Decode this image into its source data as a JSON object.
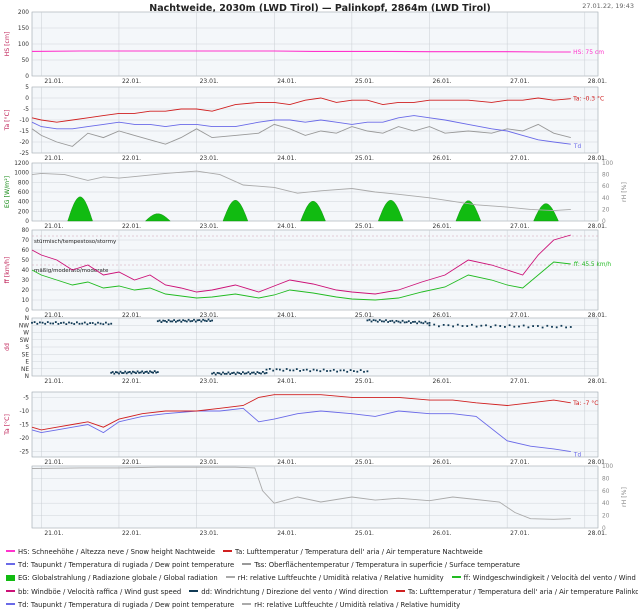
{
  "header": {
    "title": "Nachtweide, 2030m (LWD Tirol) — Palinkopf, 2864m (LWD Tirol)",
    "timestamp": "27.01.22, 19:43"
  },
  "colors": {
    "snow": "#ff33cc",
    "air": "#d02020",
    "dew": "#6a6ae8",
    "surface": "#999999",
    "radiation": "#11bb11",
    "humidity": "#aaaaaa",
    "wind": "#22bb22",
    "gust": "#cc1177",
    "direction": "#113a55",
    "panel_bg": "#f4f7fa",
    "grid": "#c8cdd2"
  },
  "chart_data": [
    {
      "type": "line",
      "id": "snow",
      "ylabel": "HS [cm]",
      "ylim": [
        0,
        200
      ],
      "yticks": [
        0,
        50,
        100,
        150,
        200
      ],
      "x_ticks": [
        "21.01.",
        "22.01.",
        "23.01.",
        "24.01.",
        "25.01.",
        "26.01.",
        "27.01.",
        "28.01."
      ],
      "end_label": "HS: 75 cm",
      "series": [
        {
          "name": "HS: Schneehöhe / Altezza neve / Snow height Nachtweide",
          "color": "#ff33cc",
          "x": [
            20.88,
            21.5,
            22.0,
            22.5,
            23.0,
            23.5,
            24.0,
            24.5,
            25.0,
            25.5,
            26.0,
            26.5,
            27.0,
            27.5,
            27.82
          ],
          "y": [
            77,
            78,
            78,
            78,
            78,
            78,
            78,
            77,
            77,
            77,
            76,
            76,
            76,
            75,
            75
          ]
        }
      ]
    },
    {
      "type": "line",
      "id": "nachtweide-temp",
      "ylabel": "Ta [°C]",
      "ylim": [
        -25,
        5
      ],
      "yticks": [
        5,
        0,
        -5,
        -10,
        -15,
        -20,
        -25
      ],
      "x_ticks": [
        "21.01.",
        "22.01.",
        "23.01.",
        "24.01.",
        "25.01.",
        "26.01.",
        "27.01.",
        "28.01."
      ],
      "end_labels": [
        "Ta: -0.3 °C",
        "Td"
      ],
      "series": [
        {
          "name": "Ta: Lufttemperatur / Temperatura dell' aria / Air temperature Nachtweide",
          "color": "#d02020",
          "x": [
            20.88,
            21.0,
            21.2,
            21.4,
            21.6,
            21.8,
            22.0,
            22.2,
            22.4,
            22.6,
            22.8,
            23.0,
            23.2,
            23.5,
            23.8,
            24.0,
            24.2,
            24.4,
            24.6,
            24.8,
            25.0,
            25.2,
            25.4,
            25.6,
            25.8,
            26.0,
            26.2,
            26.5,
            26.8,
            27.0,
            27.2,
            27.4,
            27.6,
            27.82
          ],
          "y": [
            -9,
            -10,
            -11,
            -10,
            -9,
            -8,
            -7,
            -7,
            -6,
            -6,
            -5,
            -5,
            -6,
            -3,
            -2,
            -2,
            -3,
            -1,
            0,
            -2,
            -1,
            -1,
            -3,
            -2,
            -2,
            -1,
            -1,
            -1,
            -2,
            -1,
            -1,
            0,
            -1,
            -0.3
          ]
        },
        {
          "name": "Td: Taupunkt / Temperatura di rugiada / Dew point temperature",
          "color": "#6a6ae8",
          "x": [
            20.88,
            21.0,
            21.2,
            21.4,
            21.6,
            21.8,
            22.0,
            22.2,
            22.4,
            22.6,
            22.8,
            23.0,
            23.2,
            23.5,
            23.8,
            24.0,
            24.2,
            24.4,
            24.6,
            24.8,
            25.0,
            25.2,
            25.4,
            25.6,
            25.8,
            26.0,
            26.2,
            26.5,
            26.8,
            27.0,
            27.2,
            27.4,
            27.6,
            27.82
          ],
          "y": [
            -11,
            -13,
            -14,
            -14,
            -13,
            -12,
            -11,
            -12,
            -12,
            -13,
            -12,
            -12,
            -13,
            -13,
            -11,
            -10,
            -10,
            -11,
            -10,
            -11,
            -12,
            -11,
            -11,
            -9,
            -8,
            -9,
            -10,
            -12,
            -14,
            -15,
            -17,
            -19,
            -20,
            -21
          ]
        },
        {
          "name": "Tss: Oberflächentemperatur / Temperatura in superficie / Surface temperature",
          "color": "#999999",
          "x": [
            20.88,
            21.0,
            21.2,
            21.4,
            21.6,
            21.8,
            22.0,
            22.2,
            22.4,
            22.6,
            22.8,
            23.0,
            23.2,
            23.5,
            23.8,
            24.0,
            24.2,
            24.4,
            24.6,
            24.8,
            25.0,
            25.2,
            25.4,
            25.6,
            25.8,
            26.0,
            26.2,
            26.5,
            26.8,
            27.0,
            27.2,
            27.4,
            27.6,
            27.82
          ],
          "y": [
            -14,
            -17,
            -20,
            -22,
            -16,
            -18,
            -15,
            -17,
            -19,
            -21,
            -18,
            -14,
            -18,
            -17,
            -16,
            -12,
            -14,
            -17,
            -15,
            -16,
            -13,
            -15,
            -16,
            -13,
            -15,
            -13,
            -16,
            -15,
            -16,
            -14,
            -15,
            -12,
            -16,
            -18
          ]
        }
      ]
    },
    {
      "type": "area",
      "id": "radiation",
      "ylabel": "EG [W/m²]",
      "ylabel_right": "rH [%]",
      "ylim": [
        0,
        1200
      ],
      "yticks": [
        0,
        200,
        400,
        600,
        800,
        1000,
        1200
      ],
      "ylim_right": [
        0,
        100
      ],
      "yticks_right": [
        0,
        20,
        40,
        60,
        80,
        100
      ],
      "x_ticks": [
        "21.01.",
        "22.01.",
        "23.01.",
        "24.01.",
        "25.01.",
        "26.01.",
        "27.01.",
        "28.01."
      ],
      "series": [
        {
          "name": "EG: Globalstrahlung / Radiazione globale / Global radiation",
          "color": "#11bb11",
          "days": [
            21.5,
            22.5,
            23.5,
            24.5,
            25.5,
            26.5,
            27.5
          ],
          "peaks": [
            500,
            150,
            430,
            410,
            430,
            420,
            360
          ]
        },
        {
          "name": "rH: relative Luftfeuchte / Umidità relativa / Relative humidity",
          "color": "#aaaaaa",
          "axis": "right",
          "x": [
            20.88,
            21.0,
            21.3,
            21.6,
            21.8,
            22.0,
            22.3,
            22.6,
            23.0,
            23.3,
            23.6,
            24.0,
            24.3,
            24.6,
            25.0,
            25.3,
            25.6,
            26.0,
            26.3,
            26.6,
            27.0,
            27.3,
            27.6,
            27.82
          ],
          "y": [
            80,
            82,
            80,
            70,
            76,
            74,
            78,
            82,
            86,
            80,
            62,
            58,
            48,
            52,
            56,
            50,
            46,
            40,
            34,
            28,
            24,
            20,
            18,
            20
          ]
        }
      ]
    },
    {
      "type": "line",
      "id": "wind",
      "ylabel": "ff [km/h]",
      "ylim": [
        0,
        80
      ],
      "yticks": [
        0,
        10,
        20,
        30,
        40,
        50,
        60,
        70,
        80
      ],
      "x_ticks": [
        "21.01.",
        "22.01.",
        "23.01.",
        "24.01.",
        "25.01.",
        "26.01.",
        "27.01.",
        "28.01."
      ],
      "annotations": [
        "stürmisch/tempestoso/stormy",
        "mäßig/moderato/moderate"
      ],
      "end_label": "ff: 45.5 km/h",
      "series": [
        {
          "name": "bb: Windböe / Velocità raffica / Wind gust speed",
          "color": "#cc1177",
          "x": [
            20.88,
            21.0,
            21.2,
            21.4,
            21.6,
            21.8,
            22.0,
            22.2,
            22.4,
            22.6,
            22.8,
            23.0,
            23.2,
            23.5,
            23.8,
            24.0,
            24.2,
            24.5,
            24.8,
            25.0,
            25.3,
            25.6,
            25.9,
            26.2,
            26.5,
            26.8,
            27.0,
            27.2,
            27.4,
            27.6,
            27.82
          ],
          "y": [
            60,
            55,
            50,
            40,
            45,
            35,
            38,
            30,
            35,
            25,
            22,
            18,
            20,
            25,
            18,
            24,
            30,
            26,
            20,
            18,
            16,
            20,
            28,
            35,
            50,
            45,
            40,
            35,
            55,
            70,
            75
          ]
        },
        {
          "name": "ff: Windgeschwindigkeit / Velocità del vento / Wind speed Palinkopf",
          "color": "#22bb22",
          "x": [
            20.88,
            21.0,
            21.2,
            21.4,
            21.6,
            21.8,
            22.0,
            22.2,
            22.4,
            22.6,
            22.8,
            23.0,
            23.2,
            23.5,
            23.8,
            24.0,
            24.2,
            24.5,
            24.8,
            25.0,
            25.3,
            25.6,
            25.9,
            26.2,
            26.5,
            26.8,
            27.0,
            27.2,
            27.4,
            27.6,
            27.82
          ],
          "y": [
            40,
            35,
            30,
            25,
            28,
            22,
            24,
            20,
            22,
            16,
            14,
            12,
            13,
            16,
            12,
            15,
            20,
            17,
            13,
            11,
            10,
            12,
            18,
            23,
            35,
            30,
            25,
            22,
            35,
            48,
            46
          ]
        }
      ]
    },
    {
      "type": "scatter",
      "id": "wind-direction",
      "ylabel": "dd",
      "ycats": [
        "N",
        "NW",
        "W",
        "SW",
        "S",
        "SE",
        "E",
        "NE",
        "N"
      ],
      "x_ticks": [
        "21.01.",
        "22.01.",
        "23.01.",
        "24.01.",
        "25.01.",
        "26.01.",
        "27.01.",
        "28.01."
      ],
      "series": [
        {
          "name": "dd: Windrichtung / Direzione del vento / Wind direction",
          "color": "#113a55",
          "segments": [
            {
              "x": [
                20.88,
                21.9
              ],
              "y": [
                330,
                325
              ]
            },
            {
              "x": [
                21.9,
                22.5
              ],
              "y": [
                20,
                25
              ]
            },
            {
              "x": [
                22.5,
                23.2
              ],
              "y": [
                340,
                345
              ]
            },
            {
              "x": [
                23.2,
                23.9
              ],
              "y": [
                15,
                20
              ]
            },
            {
              "x": [
                23.9,
                25.2
              ],
              "y": [
                40,
                30
              ]
            },
            {
              "x": [
                25.2,
                26.0
              ],
              "y": [
                345,
                330
              ]
            },
            {
              "x": [
                26.0,
                27.82
              ],
              "y": [
                315,
                305
              ]
            }
          ]
        }
      ]
    },
    {
      "type": "line",
      "id": "palinkopf-temp",
      "ylabel": "Ta [°C]",
      "ylim": [
        -27,
        -3
      ],
      "yticks": [
        -5,
        -10,
        -15,
        -20,
        -25
      ],
      "x_ticks": [
        "21.01.",
        "22.01.",
        "23.01.",
        "24.01.",
        "25.01.",
        "26.01.",
        "27.01.",
        "28.01."
      ],
      "end_labels": [
        "Ta: -7 °C",
        "Td"
      ],
      "series": [
        {
          "name": "Ta: Lufttemperatur / Temperatura dell' aria / Air temperature Palinkopf",
          "color": "#d02020",
          "x": [
            20.88,
            21.0,
            21.2,
            21.4,
            21.6,
            21.8,
            22.0,
            22.3,
            22.6,
            23.0,
            23.3,
            23.6,
            23.8,
            24.0,
            24.3,
            24.6,
            25.0,
            25.3,
            25.6,
            26.0,
            26.3,
            26.6,
            27.0,
            27.3,
            27.6,
            27.82
          ],
          "y": [
            -16,
            -17,
            -16,
            -15,
            -14,
            -16,
            -13,
            -11,
            -10,
            -10,
            -9,
            -8,
            -5,
            -4,
            -4,
            -4,
            -5,
            -5,
            -5,
            -6,
            -6,
            -7,
            -8,
            -7,
            -6,
            -7
          ]
        },
        {
          "name": "Td: Taupunkt / Temperatura di rugiada / Dew point temperature",
          "color": "#6a6ae8",
          "x": [
            20.88,
            21.0,
            21.2,
            21.4,
            21.6,
            21.8,
            22.0,
            22.3,
            22.6,
            23.0,
            23.3,
            23.6,
            23.8,
            24.0,
            24.3,
            24.6,
            25.0,
            25.3,
            25.6,
            26.0,
            26.3,
            26.6,
            27.0,
            27.3,
            27.6,
            27.82
          ],
          "y": [
            -17,
            -18,
            -17,
            -16,
            -15,
            -18,
            -14,
            -12,
            -11,
            -10,
            -10,
            -9,
            -14,
            -13,
            -11,
            -10,
            -11,
            -12,
            -10,
            -11,
            -11,
            -12,
            -21,
            -23,
            -24,
            -25
          ]
        }
      ]
    },
    {
      "type": "line",
      "id": "palinkopf-humidity",
      "ylabel_right": "rH [%]",
      "ylim_right": [
        0,
        100
      ],
      "yticks_right": [
        0,
        20,
        40,
        60,
        80,
        100
      ],
      "x_ticks": [
        "21.01.",
        "22.01.",
        "23.01.",
        "24.01.",
        "25.01.",
        "26.01.",
        "27.01.",
        "28.01."
      ],
      "series": [
        {
          "name": "rH: relative Luftfeuchte / Umidità relativa / Relative humidity",
          "color": "#aaaaaa",
          "x": [
            20.88,
            21.5,
            22.0,
            22.5,
            23.0,
            23.5,
            23.75,
            23.85,
            24.0,
            24.3,
            24.6,
            25.0,
            25.3,
            25.6,
            26.0,
            26.3,
            26.6,
            26.9,
            27.1,
            27.3,
            27.6,
            27.82
          ],
          "y": [
            96,
            97,
            97,
            98,
            98,
            98,
            97,
            60,
            40,
            50,
            42,
            50,
            45,
            48,
            44,
            50,
            46,
            42,
            25,
            15,
            14,
            15
          ]
        }
      ]
    }
  ],
  "legend": [
    [
      {
        "color": "#ff33cc",
        "kind": "line",
        "text": "HS: Schneehöhe / Altezza neve / Snow height  Nachtweide"
      },
      {
        "color": "#d02020",
        "kind": "line",
        "text": "Ta: Lufttemperatur / Temperatura dell' aria / Air temperature  Nachtweide"
      }
    ],
    [
      {
        "color": "#6a6ae8",
        "kind": "line",
        "text": "Td: Taupunkt / Temperatura di rugiada / Dew point temperature"
      },
      {
        "color": "#999999",
        "kind": "line",
        "text": "Tss: Oberflächentemperatur / Temperatura in superficie / Surface temperature"
      }
    ],
    [
      {
        "color": "#11bb11",
        "kind": "area",
        "text": "EG: Globalstrahlung / Radiazione globale / Global radiation"
      },
      {
        "color": "#aaaaaa",
        "kind": "line",
        "text": "rH: relative Luftfeuchte / Umidità relativa / Relative humidity"
      },
      {
        "color": "#22bb22",
        "kind": "line",
        "text": "ff: Windgeschwindigkeit / Velocità del vento / Wind speed  Palinkopf"
      }
    ],
    [
      {
        "color": "#cc1177",
        "kind": "line",
        "text": "bb: Windböe / Velocità raffica / Wind gust speed"
      },
      {
        "color": "#113a55",
        "kind": "line",
        "text": "dd: Windrichtung / Direzione del vento / Wind direction"
      },
      {
        "color": "#d02020",
        "kind": "line",
        "text": "Ta: Lufttemperatur / Temperatura dell' aria / Air temperature  Palinkopf"
      }
    ],
    [
      {
        "color": "#6a6ae8",
        "kind": "line",
        "text": "Td: Taupunkt / Temperatura di rugiada / Dew point temperature"
      },
      {
        "color": "#aaaaaa",
        "kind": "line",
        "text": "rH: relative Luftfeuchte / Umidità relativa / Relative humidity"
      }
    ]
  ]
}
